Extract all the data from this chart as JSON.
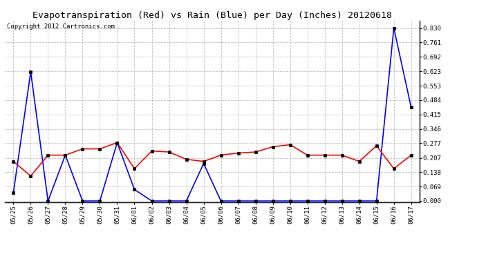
{
  "title": "Evapotranspiration (Red) vs Rain (Blue) per Day (Inches) 20120618",
  "copyright": "Copyright 2012 Cartronics.com",
  "labels": [
    "05/25",
    "05/26",
    "05/27",
    "05/28",
    "05/29",
    "05/30",
    "05/31",
    "06/01",
    "06/02",
    "06/03",
    "06/04",
    "06/05",
    "06/06",
    "06/07",
    "06/08",
    "06/09",
    "06/10",
    "06/11",
    "06/12",
    "06/13",
    "06/14",
    "06/15",
    "06/16",
    "06/17"
  ],
  "rain": [
    0.04,
    0.62,
    0.0,
    0.22,
    0.0,
    0.0,
    0.28,
    0.055,
    0.0,
    0.0,
    0.0,
    0.18,
    0.0,
    0.0,
    0.0,
    0.0,
    0.0,
    0.0,
    0.0,
    0.0,
    0.0,
    0.0,
    0.83,
    0.45
  ],
  "et": [
    0.19,
    0.12,
    0.22,
    0.22,
    0.25,
    0.25,
    0.28,
    0.155,
    0.24,
    0.235,
    0.2,
    0.19,
    0.22,
    0.23,
    0.235,
    0.26,
    0.27,
    0.22,
    0.22,
    0.22,
    0.19,
    0.265,
    0.155,
    0.22
  ],
  "ylim_min": -0.005,
  "ylim_max": 0.865,
  "yticks": [
    0.0,
    0.069,
    0.138,
    0.207,
    0.277,
    0.346,
    0.415,
    0.484,
    0.553,
    0.623,
    0.692,
    0.761,
    0.83
  ],
  "bg_color": "#ffffff",
  "grid_color": "#bbbbbb",
  "rain_color": "#0000ff",
  "et_color": "#ff0000",
  "title_fontsize": 9.5,
  "copyright_fontsize": 6.5,
  "tick_fontsize": 6.5
}
